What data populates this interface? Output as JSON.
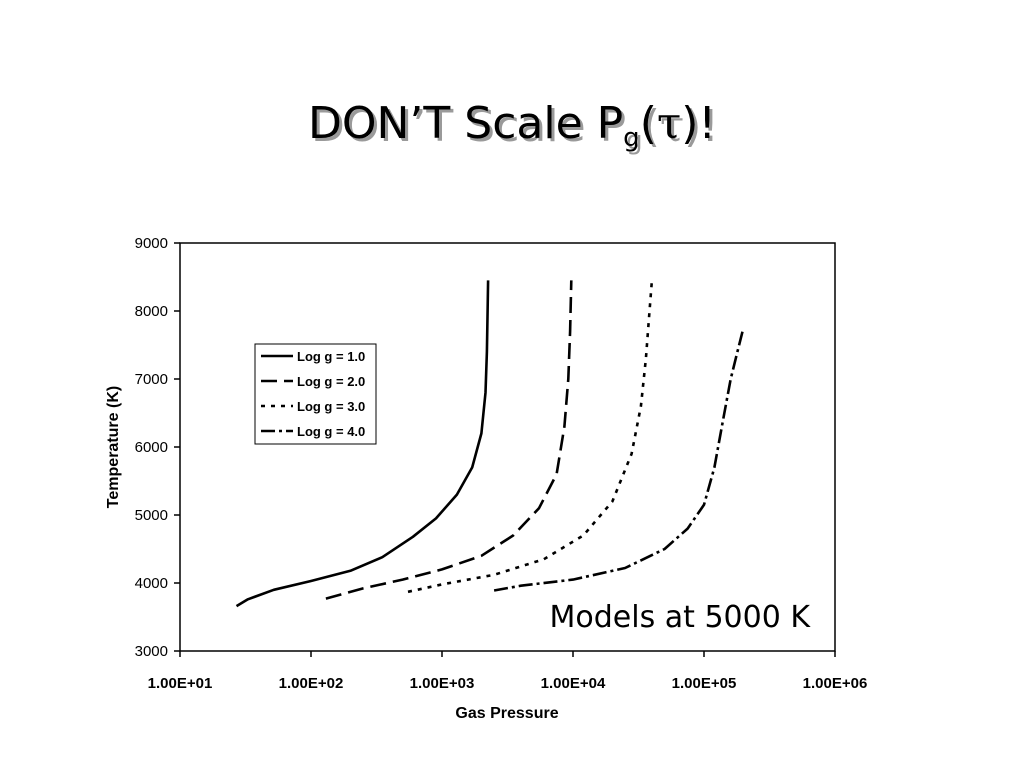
{
  "slide": {
    "title_main": "DON’T Scale P",
    "title_sub": "g",
    "title_open": "(",
    "title_tau": "τ",
    "title_close": ")!"
  },
  "chart_data": {
    "type": "line",
    "xlabel": "Gas Pressure",
    "ylabel": "Temperature (K)",
    "x_scale": "log",
    "xlim": [
      10,
      1000000
    ],
    "ylim": [
      3000,
      9000
    ],
    "x_ticks": [
      "1.00E+01",
      "1.00E+02",
      "1.00E+03",
      "1.00E+04",
      "1.00E+05",
      "1.00E+06"
    ],
    "y_ticks": [
      "3000",
      "4000",
      "5000",
      "6000",
      "7000",
      "8000",
      "9000"
    ],
    "grid": false,
    "legend_position": "upper-left",
    "annotation": "Models at 5000 K",
    "series": [
      {
        "name": "Log g = 1.0",
        "style": "solid",
        "points": [
          [
            27,
            3660
          ],
          [
            33,
            3760
          ],
          [
            52,
            3900
          ],
          [
            100,
            4030
          ],
          [
            200,
            4180
          ],
          [
            350,
            4380
          ],
          [
            600,
            4680
          ],
          [
            900,
            4950
          ],
          [
            1300,
            5300
          ],
          [
            1700,
            5700
          ],
          [
            2000,
            6200
          ],
          [
            2150,
            6800
          ],
          [
            2200,
            7400
          ],
          [
            2230,
            8000
          ],
          [
            2250,
            8450
          ]
        ]
      },
      {
        "name": "Log g = 2.0",
        "style": "long-dash",
        "points": [
          [
            130,
            3770
          ],
          [
            250,
            3920
          ],
          [
            500,
            4050
          ],
          [
            1000,
            4200
          ],
          [
            2000,
            4400
          ],
          [
            3500,
            4700
          ],
          [
            5500,
            5100
          ],
          [
            7500,
            5600
          ],
          [
            8600,
            6300
          ],
          [
            9200,
            7000
          ],
          [
            9500,
            7700
          ],
          [
            9700,
            8450
          ]
        ]
      },
      {
        "name": "Log g = 3.0",
        "style": "dotted",
        "points": [
          [
            550,
            3870
          ],
          [
            1000,
            3980
          ],
          [
            2500,
            4120
          ],
          [
            6000,
            4350
          ],
          [
            12000,
            4700
          ],
          [
            20000,
            5200
          ],
          [
            28000,
            5900
          ],
          [
            33000,
            6600
          ],
          [
            36000,
            7300
          ],
          [
            38000,
            7900
          ],
          [
            40000,
            8450
          ]
        ]
      },
      {
        "name": "Log g = 4.0",
        "style": "dash-dot",
        "points": [
          [
            2500,
            3890
          ],
          [
            4000,
            3960
          ],
          [
            10000,
            4050
          ],
          [
            25000,
            4220
          ],
          [
            50000,
            4500
          ],
          [
            75000,
            4800
          ],
          [
            100000,
            5150
          ],
          [
            120000,
            5700
          ],
          [
            140000,
            6400
          ],
          [
            160000,
            7000
          ],
          [
            180000,
            7400
          ],
          [
            200000,
            7750
          ]
        ]
      }
    ]
  }
}
